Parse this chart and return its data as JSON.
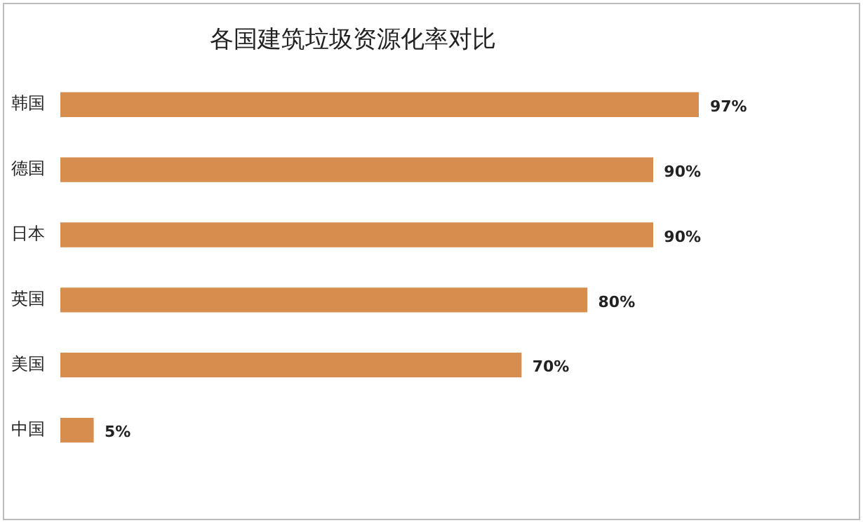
{
  "chart_data": {
    "type": "bar",
    "orientation": "horizontal",
    "title": "各国建筑垃圾资源化率对比",
    "categories": [
      "韩国",
      "德国",
      "日本",
      "英国",
      "美国",
      "中国"
    ],
    "values": [
      97,
      90,
      90,
      80,
      70,
      5
    ],
    "color": "#d68d4e",
    "value_labels": [
      "97%",
      "90%",
      "90%",
      "80%",
      "70%",
      "5%"
    ],
    "legend": false
  }
}
